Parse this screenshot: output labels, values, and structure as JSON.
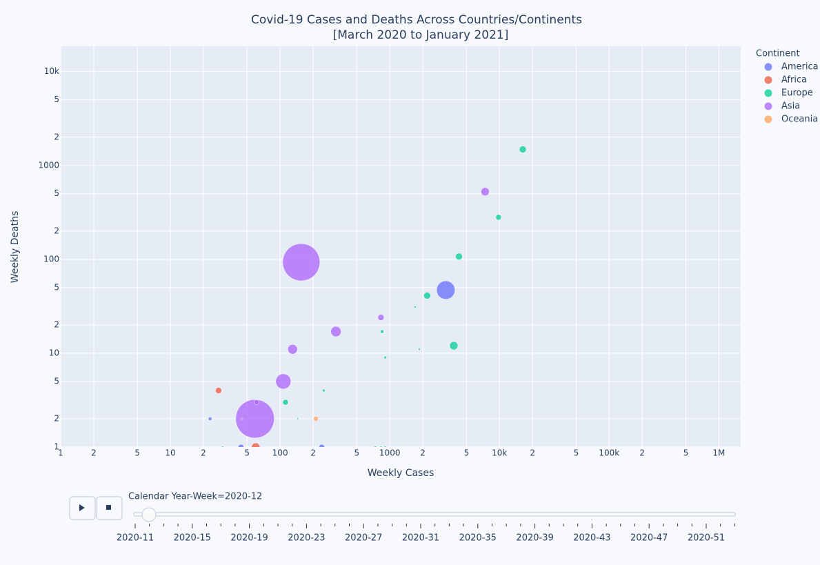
{
  "chart_data": {
    "type": "scatter",
    "title": "Covid-19 Cases and Deaths Across Countries/Continents",
    "subtitle": "[March 2020 to January 2021]",
    "x_label": "Weekly Cases",
    "y_label": "Weekly Deaths",
    "legend_title": "Continent",
    "legend_position": "right",
    "xscale": "log",
    "yscale": "log",
    "grid": true,
    "xlim": [
      1,
      1580000
    ],
    "ylim": [
      1,
      18600
    ],
    "xticks": [
      1,
      2,
      5,
      10,
      {
        "value": 20,
        "label": "2"
      },
      {
        "value": 50,
        "label": "5"
      },
      100,
      {
        "value": 200,
        "label": "2"
      },
      {
        "value": 500,
        "label": "5"
      },
      1000,
      {
        "value": 2000,
        "label": "2"
      },
      {
        "value": 5000,
        "label": "5"
      },
      {
        "value": 10000,
        "label": "10k"
      },
      {
        "value": 20000,
        "label": "2"
      },
      {
        "value": 50000,
        "label": "5"
      },
      {
        "value": 100000,
        "label": "100k"
      },
      {
        "value": 200000,
        "label": "2"
      },
      {
        "value": 500000,
        "label": "5"
      },
      {
        "value": 1000000,
        "label": "1M"
      }
    ],
    "yticks": [
      1,
      2,
      5,
      10,
      {
        "value": 20,
        "label": "2"
      },
      {
        "value": 50,
        "label": "5"
      },
      100,
      {
        "value": 200,
        "label": "2"
      },
      {
        "value": 500,
        "label": "5"
      },
      1000,
      {
        "value": 2000,
        "label": "2"
      },
      {
        "value": 5000,
        "label": "5"
      },
      {
        "value": 10000,
        "label": "10k"
      }
    ],
    "series": [
      {
        "name": "America",
        "color": "#636efa",
        "x": [
          3240,
          23,
          44,
          240
        ],
        "y": [
          47,
          2,
          1,
          1
        ],
        "size": [
          330,
          12,
          30,
          30
        ]
      },
      {
        "name": "Africa",
        "color": "#ef553b",
        "x": [
          27.5,
          60
        ],
        "y": [
          4,
          1
        ],
        "size": [
          37,
          67
        ]
      },
      {
        "name": "Europe",
        "color": "#00cc96",
        "x": [
          16300,
          9800,
          4270,
          2190,
          1700,
          3830,
          850,
          910,
          1860,
          250,
          112,
          145,
          30,
          740,
          830,
          910
        ],
        "y": [
          1480,
          280,
          107,
          41,
          31,
          12,
          17,
          9,
          11,
          4,
          3,
          2,
          1,
          1,
          1,
          1
        ],
        "size": [
          46,
          30,
          46,
          46,
          4,
          67,
          12,
          7,
          4,
          7,
          30,
          2,
          4,
          4,
          4,
          4
        ]
      },
      {
        "name": "Asia",
        "color": "#ab63fa",
        "x": [
          7400,
          156,
          830,
          323,
          130,
          107,
          59,
          61,
          45
        ],
        "y": [
          525,
          93,
          24,
          17,
          11,
          5,
          2,
          3,
          2
        ],
        "size": [
          67,
          1350,
          37,
          104,
          91,
          224,
          1450,
          23,
          2
        ]
      },
      {
        "name": "Oceania",
        "color": "#ffa15a",
        "x": [
          212
        ],
        "y": [
          2
        ],
        "size": [
          23
        ]
      }
    ],
    "slider": {
      "current_label": "Calendar Year-Week=2020-12",
      "tick_labels": [
        "2020-11",
        "2020-15",
        "2020-19",
        "2020-23",
        "2020-27",
        "2020-31",
        "2020-35",
        "2020-39",
        "2020-43",
        "2020-47",
        "2020-51"
      ]
    }
  }
}
